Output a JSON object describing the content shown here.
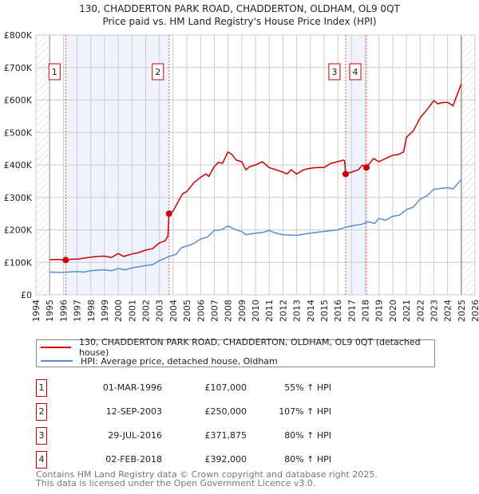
{
  "title_line1": "130, CHADDERTON PARK ROAD, CHADDERTON, OLDHAM, OL9 0QT",
  "title_line2": "Price paid vs. HM Land Registry's House Price Index (HPI)",
  "chart_data": {
    "type": "line",
    "xlim": [
      1994,
      2026
    ],
    "ylim": [
      0,
      800000
    ],
    "x_ticks": [
      "1994",
      "1995",
      "1996",
      "1997",
      "1998",
      "1999",
      "2000",
      "2001",
      "2002",
      "2003",
      "2004",
      "2005",
      "2006",
      "2007",
      "2008",
      "2009",
      "2010",
      "2011",
      "2012",
      "2013",
      "2014",
      "2015",
      "2016",
      "2017",
      "2018",
      "2019",
      "2020",
      "2021",
      "2022",
      "2023",
      "2024",
      "2025",
      "2026"
    ],
    "y_ticks": [
      {
        "v": 0,
        "label": "£0"
      },
      {
        "v": 100000,
        "label": "£100K"
      },
      {
        "v": 200000,
        "label": "£200K"
      },
      {
        "v": 300000,
        "label": "£300K"
      },
      {
        "v": 400000,
        "label": "£400K"
      },
      {
        "v": 500000,
        "label": "£500K"
      },
      {
        "v": 600000,
        "label": "£600K"
      },
      {
        "v": 700000,
        "label": "£700K"
      },
      {
        "v": 800000,
        "label": "£800K"
      }
    ],
    "hatched_ranges": [
      [
        1994,
        1995
      ],
      [
        2025,
        2026
      ]
    ],
    "shaded_ranges": [
      [
        1996.17,
        2003.7
      ],
      [
        2016.57,
        2018.09
      ]
    ],
    "series": [
      {
        "name": "130, CHADDERTON PARK ROAD, CHADDERTON, OLDHAM, OL9 0QT (detached house)",
        "color": "#cc0000",
        "x": [
          1995,
          1995.5,
          1996.17,
          1996.6,
          1997,
          1997.5,
          1998,
          1998.5,
          1999,
          1999.5,
          2000,
          2000.4,
          2001,
          2001.5,
          2002,
          2002.5,
          2003,
          2003.4,
          2003.62,
          2003.7,
          2004,
          2004.4,
          2004.7,
          2005,
          2005.5,
          2006,
          2006.4,
          2006.6,
          2007,
          2007.3,
          2007.6,
          2008,
          2008.3,
          2008.6,
          2009,
          2009.3,
          2009.6,
          2010,
          2010.5,
          2011,
          2011.5,
          2012,
          2012.3,
          2012.6,
          2013,
          2013.5,
          2014,
          2014.5,
          2015,
          2015.5,
          2016,
          2016.4,
          2016.5,
          2016.57,
          2017,
          2017.5,
          2017.8,
          2018.09,
          2018.6,
          2019,
          2019.5,
          2020,
          2020.4,
          2020.8,
          2021,
          2021.5,
          2022,
          2022.5,
          2023,
          2023.3,
          2023.6,
          2024,
          2024.4,
          2024.6,
          2025
        ],
        "y": [
          108000,
          109000,
          107000,
          110000,
          110000,
          113000,
          116000,
          118000,
          119000,
          115000,
          127000,
          118000,
          126000,
          130000,
          138000,
          142000,
          160000,
          166000,
          180000,
          250000,
          258000,
          290000,
          312000,
          318000,
          345000,
          362000,
          372000,
          365000,
          395000,
          408000,
          405000,
          440000,
          432000,
          415000,
          410000,
          385000,
          395000,
          400000,
          410000,
          392000,
          385000,
          378000,
          372000,
          385000,
          372000,
          385000,
          390000,
          392000,
          392000,
          405000,
          410000,
          415000,
          412000,
          372000,
          378000,
          385000,
          400000,
          392000,
          420000,
          410000,
          420000,
          430000,
          432000,
          440000,
          485000,
          505000,
          545000,
          570000,
          598000,
          588000,
          592000,
          593000,
          582000,
          605000,
          650000
        ]
      },
      {
        "name": "HPI: Average price, detached house, Oldham",
        "color": "#5b8ccf",
        "x": [
          1995,
          1996,
          1997,
          1997.5,
          1998,
          1999,
          1999.5,
          2000,
          2000.5,
          2001,
          2002,
          2002.5,
          2003,
          2003.7,
          2004.2,
          2004.6,
          2005,
          2005.5,
          2006,
          2006.5,
          2007,
          2007.5,
          2008,
          2008.5,
          2009,
          2009.3,
          2010,
          2010.5,
          2011,
          2011.5,
          2012,
          2013,
          2014,
          2015,
          2016,
          2016.57,
          2017,
          2017.8,
          2018.2,
          2018.7,
          2019,
          2019.5,
          2020,
          2020.5,
          2021,
          2021.5,
          2022,
          2022.5,
          2023,
          2024,
          2024.4,
          2025
        ],
        "y": [
          70000,
          69000,
          72000,
          70000,
          74000,
          77000,
          74000,
          81000,
          77000,
          83000,
          90000,
          93000,
          105000,
          118000,
          124000,
          145000,
          150000,
          158000,
          172000,
          178000,
          198000,
          200000,
          212000,
          202000,
          195000,
          185000,
          190000,
          192000,
          198000,
          190000,
          185000,
          183000,
          190000,
          195000,
          200000,
          208000,
          212000,
          218000,
          225000,
          220000,
          235000,
          230000,
          242000,
          245000,
          262000,
          270000,
          295000,
          305000,
          325000,
          330000,
          326000,
          355000
        ]
      }
    ],
    "sales": [
      {
        "id": "1",
        "x": 1996.17,
        "price": 107000,
        "date": "01-MAR-1996",
        "price_label": "£107,000",
        "hpi": "55% ↑ HPI"
      },
      {
        "id": "2",
        "x": 2003.7,
        "price": 250000,
        "date": "12-SEP-2003",
        "price_label": "£250,000",
        "hpi": "107% ↑ HPI"
      },
      {
        "id": "3",
        "x": 2016.57,
        "price": 371875,
        "date": "29-JUL-2016",
        "price_label": "£371,875",
        "hpi": "80% ↑ HPI"
      },
      {
        "id": "4",
        "x": 2018.09,
        "price": 392000,
        "date": "02-FEB-2018",
        "price_label": "£392,000",
        "hpi": "80% ↑ HPI"
      }
    ]
  },
  "legend": {
    "property": "130, CHADDERTON PARK ROAD, CHADDERTON, OLDHAM, OL9 0QT (detached house)",
    "hpi": "HPI: Average price, detached house, Oldham"
  },
  "footer": {
    "line1": "Contains HM Land Registry data © Crown copyright and database right 2025.",
    "line2": "This data is licensed under the Open Government Licence v3.0."
  }
}
